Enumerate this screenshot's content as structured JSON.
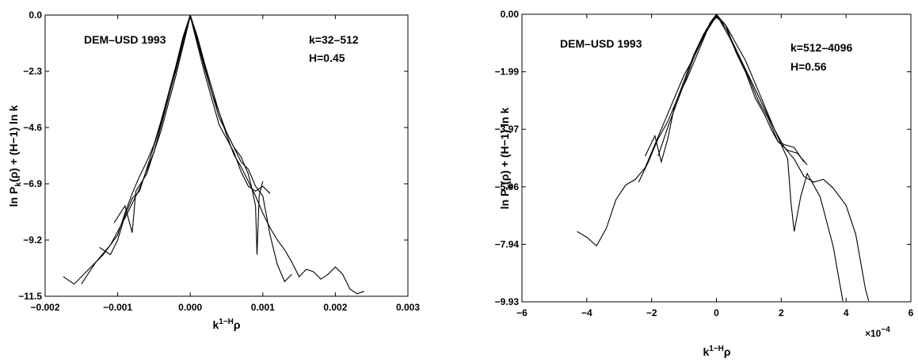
{
  "chart_data": [
    {
      "type": "line",
      "annotations": [
        "DEM–USD 1993",
        "k=32–512",
        "H=0.45"
      ],
      "xlim": [
        -0.002,
        0.003
      ],
      "ylim": [
        -11.5,
        0.0
      ],
      "xticks": [
        "−0.002",
        "−0.001",
        "0.000",
        "0.001",
        "0.002",
        "0.003"
      ],
      "yticks": [
        "0.0",
        "−2.3",
        "−4.6",
        "−6.9",
        "−9.2",
        "−11.5"
      ],
      "xlabel": {
        "base": "k",
        "sup": "1−H",
        "tail": "ρ"
      },
      "ylabel": {
        "a": "ln P",
        "sub": "k",
        "b": "(ρ) + (H−1) ln k"
      },
      "series": [
        {
          "points": [
            [
              -0.00175,
              -10.7
            ],
            [
              -0.0016,
              -11.0
            ],
            [
              -0.0014,
              -10.4
            ],
            [
              -0.0012,
              -9.8
            ],
            [
              -0.001,
              -9.0
            ],
            [
              -0.0009,
              -8.1
            ],
            [
              -0.0008,
              -7.3
            ],
            [
              -0.0007,
              -6.6
            ],
            [
              -0.0006,
              -6.0
            ],
            [
              -0.0005,
              -5.3
            ],
            [
              -0.0004,
              -4.3
            ],
            [
              -0.0003,
              -3.2
            ],
            [
              -0.0002,
              -2.1
            ],
            [
              -0.0001,
              -0.9
            ],
            [
              0.0,
              0.0
            ],
            [
              0.0001,
              -0.9
            ],
            [
              0.0002,
              -2.0
            ],
            [
              0.0003,
              -3.0
            ],
            [
              0.0004,
              -4.0
            ],
            [
              0.0005,
              -4.9
            ],
            [
              0.0006,
              -5.7
            ],
            [
              0.0007,
              -6.2
            ],
            [
              0.0008,
              -6.8
            ],
            [
              0.0009,
              -7.4
            ],
            [
              0.001,
              -8.1
            ],
            [
              0.0011,
              -8.7
            ],
            [
              0.0012,
              -9.2
            ],
            [
              0.0013,
              -9.6
            ],
            [
              0.0014,
              -10.1
            ],
            [
              0.0015,
              -10.7
            ],
            [
              0.0016,
              -10.4
            ],
            [
              0.0017,
              -10.5
            ],
            [
              0.0018,
              -10.8
            ],
            [
              0.0019,
              -10.6
            ],
            [
              0.002,
              -10.3
            ],
            [
              0.0021,
              -10.6
            ],
            [
              0.0022,
              -11.2
            ],
            [
              0.0023,
              -11.4
            ],
            [
              0.0024,
              -11.3
            ]
          ]
        },
        {
          "points": [
            [
              -0.0015,
              -11.0
            ],
            [
              -0.0013,
              -10.1
            ],
            [
              -0.0011,
              -9.4
            ],
            [
              -0.0009,
              -8.3
            ],
            [
              -0.0007,
              -7.1
            ],
            [
              -0.0005,
              -5.6
            ],
            [
              -0.0003,
              -3.4
            ],
            [
              -0.0001,
              -1.0
            ],
            [
              0.0,
              0.0
            ],
            [
              0.0001,
              -1.0
            ],
            [
              0.0003,
              -3.2
            ],
            [
              0.0005,
              -4.8
            ],
            [
              0.0007,
              -6.0
            ],
            [
              0.0008,
              -6.3
            ],
            [
              0.0009,
              -7.0
            ],
            [
              0.001,
              -7.4
            ],
            [
              0.0011,
              -9.0
            ],
            [
              0.0012,
              -10.2
            ],
            [
              0.0013,
              -10.9
            ],
            [
              0.0014,
              -10.6
            ]
          ]
        },
        {
          "points": [
            [
              -0.00125,
              -9.5
            ],
            [
              -0.0011,
              -9.8
            ],
            [
              -0.001,
              -9.2
            ],
            [
              -0.0009,
              -8.2
            ],
            [
              -0.0008,
              -7.5
            ],
            [
              -0.0007,
              -7.2
            ],
            [
              -0.0006,
              -6.3
            ],
            [
              -0.0004,
              -4.4
            ],
            [
              -0.0002,
              -2.3
            ],
            [
              0.0,
              0.0
            ],
            [
              0.0002,
              -2.2
            ],
            [
              0.0004,
              -4.2
            ],
            [
              0.0006,
              -5.4
            ],
            [
              0.0007,
              -5.8
            ],
            [
              0.0008,
              -6.5
            ],
            [
              0.00085,
              -7.1
            ],
            [
              0.0009,
              -7.8
            ],
            [
              0.00092,
              -9.8
            ],
            [
              0.00095,
              -7.4
            ],
            [
              0.001,
              -6.8
            ]
          ]
        },
        {
          "points": [
            [
              -0.00105,
              -8.5
            ],
            [
              -0.0009,
              -7.8
            ],
            [
              -0.0008,
              -8.9
            ],
            [
              -0.00075,
              -7.2
            ],
            [
              -0.0006,
              -6.5
            ],
            [
              -0.0004,
              -4.7
            ],
            [
              -0.0002,
              -2.5
            ],
            [
              0.0,
              -0.05
            ],
            [
              0.0002,
              -2.4
            ],
            [
              0.0004,
              -4.5
            ],
            [
              0.0006,
              -5.6
            ],
            [
              0.0007,
              -6.4
            ],
            [
              0.0008,
              -7.0
            ],
            [
              0.0009,
              -7.2
            ],
            [
              0.001,
              -7.0
            ],
            [
              0.0011,
              -7.3
            ]
          ]
        }
      ]
    },
    {
      "type": "line",
      "annotations": [
        "DEM–USD 1993",
        "k=512–4096",
        "H=0.56"
      ],
      "xlim": [
        -6,
        6
      ],
      "ylim": [
        -9.93,
        0.0
      ],
      "xticks": [
        "−6",
        "−4",
        "−2",
        "0",
        "2",
        "4",
        "6"
      ],
      "yticks": [
        "0.00",
        "−1.99",
        "−3.97",
        "−5.96",
        "−7.94",
        "−9.93"
      ],
      "x_multiplier": {
        "base": "×10",
        "exp": "−4"
      },
      "xlabel": {
        "base": "k",
        "sup": "1−H",
        "tail": "ρ"
      },
      "ylabel": {
        "a": "ln P",
        "sub": "k",
        "b": "(ρ) + (H−1) ln k"
      },
      "series": [
        {
          "points": [
            [
              -4.3,
              -7.5
            ],
            [
              -4.0,
              -7.7
            ],
            [
              -3.7,
              -8.0
            ],
            [
              -3.4,
              -7.4
            ],
            [
              -3.1,
              -6.4
            ],
            [
              -2.8,
              -5.9
            ],
            [
              -2.5,
              -5.7
            ],
            [
              -2.2,
              -5.3
            ],
            [
              -1.9,
              -4.5
            ],
            [
              -1.6,
              -3.7
            ],
            [
              -1.3,
              -2.9
            ],
            [
              -1.0,
              -2.1
            ],
            [
              -0.7,
              -1.5
            ],
            [
              -0.4,
              -0.8
            ],
            [
              -0.2,
              -0.3
            ],
            [
              0.0,
              0.0
            ],
            [
              0.3,
              -0.4
            ],
            [
              0.6,
              -1.0
            ],
            [
              0.9,
              -1.6
            ],
            [
              1.2,
              -2.4
            ],
            [
              1.5,
              -3.2
            ],
            [
              1.8,
              -4.0
            ],
            [
              2.1,
              -4.6
            ],
            [
              2.4,
              -5.0
            ],
            [
              2.7,
              -5.6
            ],
            [
              3.0,
              -5.8
            ],
            [
              3.3,
              -5.7
            ],
            [
              3.6,
              -6.0
            ],
            [
              4.0,
              -6.6
            ],
            [
              4.3,
              -7.6
            ],
            [
              4.6,
              -9.5
            ],
            [
              4.7,
              -9.9
            ]
          ]
        },
        {
          "points": [
            [
              -2.4,
              -5.8
            ],
            [
              -2.1,
              -5.1
            ],
            [
              -1.8,
              -4.3
            ],
            [
              -1.5,
              -3.7
            ],
            [
              -1.2,
              -2.9
            ],
            [
              -0.9,
              -2.2
            ],
            [
              -0.6,
              -1.4
            ],
            [
              -0.3,
              -0.6
            ],
            [
              0.0,
              -0.05
            ],
            [
              0.3,
              -0.5
            ],
            [
              0.6,
              -1.2
            ],
            [
              0.9,
              -1.9
            ],
            [
              1.2,
              -2.6
            ],
            [
              1.5,
              -3.3
            ],
            [
              1.8,
              -4.0
            ],
            [
              2.0,
              -4.5
            ],
            [
              2.2,
              -5.0
            ],
            [
              2.3,
              -6.5
            ],
            [
              2.4,
              -7.5
            ],
            [
              2.6,
              -6.3
            ],
            [
              2.8,
              -5.5
            ],
            [
              3.2,
              -6.3
            ],
            [
              3.6,
              -8.0
            ],
            [
              3.9,
              -9.9
            ]
          ]
        },
        {
          "points": [
            [
              -2.2,
              -4.9
            ],
            [
              -1.9,
              -4.2
            ],
            [
              -1.7,
              -5.1
            ],
            [
              -1.5,
              -4.3
            ],
            [
              -1.3,
              -3.2
            ],
            [
              -1.0,
              -2.3
            ],
            [
              -0.7,
              -1.4
            ],
            [
              -0.4,
              -0.7
            ],
            [
              0.0,
              0.0
            ],
            [
              0.4,
              -0.8
            ],
            [
              0.7,
              -1.5
            ],
            [
              1.0,
              -2.2
            ],
            [
              1.3,
              -3.0
            ],
            [
              1.6,
              -3.6
            ],
            [
              1.9,
              -4.4
            ],
            [
              2.2,
              -4.7
            ],
            [
              2.5,
              -4.8
            ],
            [
              2.8,
              -5.2
            ]
          ]
        },
        {
          "points": [
            [
              -1.8,
              -4.9
            ],
            [
              -1.5,
              -3.9
            ],
            [
              -1.2,
              -3.0
            ],
            [
              -0.9,
              -2.1
            ],
            [
              -0.6,
              -1.2
            ],
            [
              -0.3,
              -0.5
            ],
            [
              0.0,
              -0.1
            ],
            [
              0.3,
              -0.4
            ],
            [
              0.6,
              -1.3
            ],
            [
              0.9,
              -2.0
            ],
            [
              1.2,
              -2.9
            ],
            [
              1.5,
              -3.5
            ],
            [
              1.7,
              -4.0
            ],
            [
              1.9,
              -4.4
            ],
            [
              2.1,
              -4.5
            ],
            [
              2.4,
              -4.6
            ],
            [
              2.7,
              -5.1
            ]
          ]
        }
      ]
    }
  ]
}
